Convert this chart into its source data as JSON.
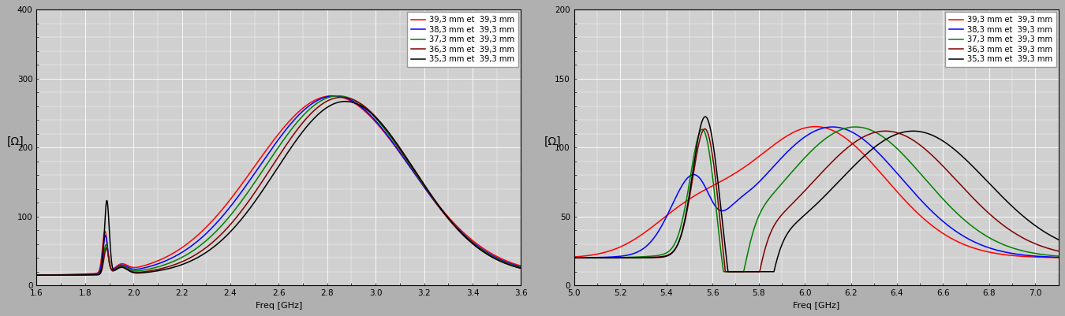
{
  "panel1": {
    "xlim": [
      1.6,
      3.6
    ],
    "ylim": [
      0,
      400
    ],
    "xlabel": "Freq [GHz]",
    "ylabel": "[Ω]",
    "yticks": [
      0,
      100,
      200,
      300,
      400
    ],
    "xticks": [
      1.6,
      1.8,
      2.0,
      2.2,
      2.4,
      2.6,
      2.8,
      3.0,
      3.2,
      3.4,
      3.6
    ],
    "xtick_labels": [
      "1.6",
      "1.8",
      "2.0",
      "2.2",
      "2.4",
      "2.6",
      "2.8",
      "3.0",
      "3.2",
      "3.4",
      "3.6"
    ],
    "ytick_labels": [
      "0",
      "100",
      "200",
      "300",
      "400"
    ]
  },
  "panel2": {
    "xlim": [
      5.0,
      7.1
    ],
    "ylim": [
      0,
      200
    ],
    "xlabel": "Freq [GHz]",
    "ylabel": "[Ω]",
    "yticks": [
      0,
      50,
      100,
      150,
      200
    ],
    "xticks": [
      5.0,
      5.2,
      5.4,
      5.6,
      5.8,
      6.0,
      6.2,
      6.4,
      6.6,
      6.8,
      7.0
    ],
    "xtick_labels": [
      "5.0",
      "5.2",
      "5.4",
      "5.6",
      "5.8",
      "6.0",
      "6.2",
      "6.4",
      "6.6",
      "6.8",
      "7.0"
    ],
    "ytick_labels": [
      "0",
      "50",
      "100",
      "150",
      "200"
    ]
  },
  "curves": [
    {
      "label": "39,3 mm et  39,3 mm",
      "color": "#ff0000"
    },
    {
      "label": "38,3 mm et  39,3 mm",
      "color": "#0000ff"
    },
    {
      "label": "37,3 mm et  39,3 mm",
      "color": "#008000"
    },
    {
      "label": "36,3 mm et  39,3 mm",
      "color": "#7f0000"
    },
    {
      "label": "35,3 mm et  39,3 mm",
      "color": "#000000"
    }
  ],
  "fig_facecolor": "#b0b0b0",
  "ax_facecolor": "#d0d0d0",
  "grid_color": "#ffffff",
  "grid_linewidth": 0.6
}
